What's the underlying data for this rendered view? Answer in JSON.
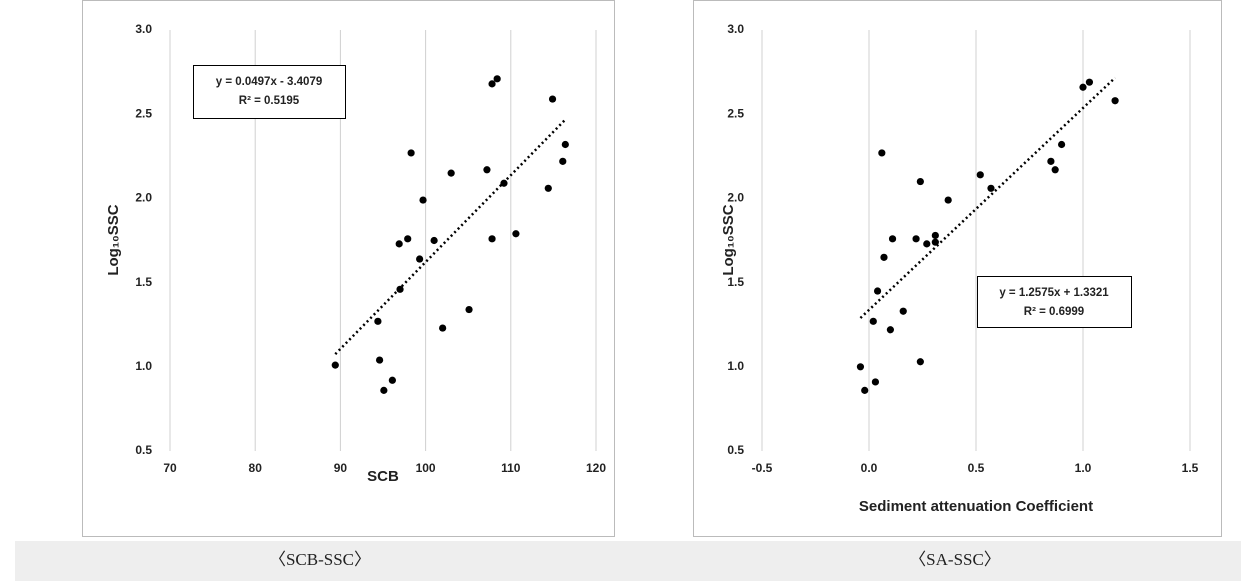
{
  "chart_data": [
    {
      "type": "scatter",
      "xlabel": "SCB",
      "ylabel": "Log₁₀SSC",
      "equation": "y = 0.0497x - 3.4079",
      "r_squared": "R² = 0.5195",
      "x": [
        89.4,
        94.4,
        94.6,
        95.1,
        96.1,
        96.9,
        97.0,
        97.9,
        98.3,
        99.3,
        99.7,
        101.0,
        102.0,
        103.0,
        105.1,
        107.2,
        107.8,
        107.8,
        108.4,
        109.2,
        110.6,
        114.4,
        114.9,
        116.4,
        116.1
      ],
      "values": [
        1.01,
        1.27,
        1.04,
        0.86,
        0.92,
        1.73,
        1.46,
        1.76,
        2.27,
        1.64,
        1.99,
        1.75,
        1.23,
        2.15,
        1.34,
        2.17,
        1.76,
        2.68,
        2.71,
        2.09,
        1.79,
        2.06,
        2.59,
        2.32,
        2.22
      ],
      "color": "#000000",
      "trendline": true,
      "xlim": [
        70,
        120
      ],
      "xticks": [
        70,
        80,
        90,
        100,
        110,
        120
      ],
      "ylim": [
        0.5,
        3.0
      ],
      "yticks": [
        {
          "value": 0.5,
          "label": "0.5"
        },
        {
          "value": 1.0,
          "label": "1.0"
        },
        {
          "value": 1.5,
          "label": "1.5"
        },
        {
          "value": 2.0,
          "label": "2.0"
        },
        {
          "value": 2.5,
          "label": "2.5"
        },
        {
          "value": 3.0,
          "label": "3.0"
        }
      ],
      "grid": true
    },
    {
      "type": "scatter",
      "xlabel": "Sediment attenuation Coefficient",
      "ylabel": "Log₁₀SSC",
      "equation": "y = 1.2575x + 1.3321",
      "r_squared": "R² = 0.6999",
      "x": [
        -0.04,
        -0.02,
        0.02,
        0.03,
        0.04,
        0.06,
        0.07,
        0.1,
        0.11,
        0.16,
        0.22,
        0.24,
        0.24,
        0.27,
        0.31,
        0.37,
        0.52,
        0.57,
        0.85,
        0.87,
        0.9,
        1.0,
        1.03,
        1.15,
        0.31
      ],
      "values": [
        1.0,
        0.86,
        1.27,
        0.91,
        1.45,
        2.27,
        1.65,
        1.22,
        1.76,
        1.33,
        1.76,
        1.03,
        2.1,
        1.73,
        1.78,
        1.99,
        2.14,
        2.06,
        2.22,
        2.17,
        2.32,
        2.66,
        2.69,
        2.58,
        1.74
      ],
      "color": "#000000",
      "trendline": true,
      "xlim": [
        -0.5,
        1.5
      ],
      "xticks": [
        {
          "value": -0.5,
          "label": "-0.5"
        },
        {
          "value": 0.0,
          "label": "0.0"
        },
        {
          "value": 0.5,
          "label": "0.5"
        },
        {
          "value": 1.0,
          "label": "1.0"
        },
        {
          "value": 1.5,
          "label": "1.5"
        }
      ],
      "ylim": [
        0.5,
        3.0
      ],
      "yticks": [
        {
          "value": 0.5,
          "label": "0.5"
        },
        {
          "value": 1.0,
          "label": "1.0"
        },
        {
          "value": 1.5,
          "label": "1.5"
        },
        {
          "value": 2.0,
          "label": "2.0"
        },
        {
          "value": 2.5,
          "label": "2.5"
        },
        {
          "value": 3.0,
          "label": "3.0"
        }
      ],
      "grid": true
    }
  ],
  "captions": [
    "〈SCB-SSC〉",
    "〈SA-SSC〉"
  ]
}
